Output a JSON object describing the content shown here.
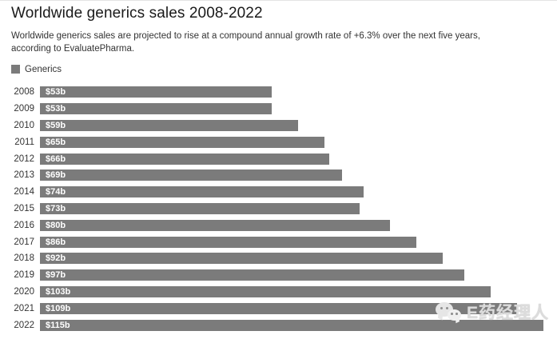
{
  "header": {
    "title": "Worldwide generics sales 2008-2022",
    "subtitle": "Worldwide generics sales are projected to rise at a compound annual growth rate of +6.3% over the next five years, according to EvaluatePharma."
  },
  "legend": {
    "label": "Generics"
  },
  "colors": {
    "bar": "#7b7b7b",
    "value_label": "#ffffff",
    "year_label": "#333333",
    "title": "#1a1a1a",
    "watermark": "#dcdcdc"
  },
  "watermark": {
    "icon": "wechat-icon",
    "text": "E药经理人"
  },
  "chart_data": {
    "type": "bar",
    "orientation": "horizontal",
    "title": "Worldwide generics sales 2008-2022",
    "subtitle": "Worldwide generics sales are projected to rise at a compound annual growth rate of +6.3% over the next five years, according to EvaluatePharma.",
    "categories": [
      "2008",
      "2009",
      "2010",
      "2011",
      "2012",
      "2013",
      "2014",
      "2015",
      "2016",
      "2017",
      "2018",
      "2019",
      "2020",
      "2021",
      "2022"
    ],
    "series": [
      {
        "name": "Generics",
        "values": [
          53,
          53,
          59,
          65,
          66,
          69,
          74,
          73,
          80,
          86,
          92,
          97,
          103,
          109,
          115
        ],
        "labels": [
          "$53b",
          "$53b",
          "$59b",
          "$65b",
          "$66b",
          "$69b",
          "$74b",
          "$73b",
          "$80b",
          "$86b",
          "$92b",
          "$97b",
          "$103b",
          "$109b",
          "$115b"
        ]
      }
    ],
    "value_prefix": "$",
    "value_suffix": "b",
    "unit": "billion USD",
    "xlim": [
      0,
      115
    ],
    "grid": false,
    "legend_position": "top-left",
    "data_labels": "inside-bar-start"
  }
}
